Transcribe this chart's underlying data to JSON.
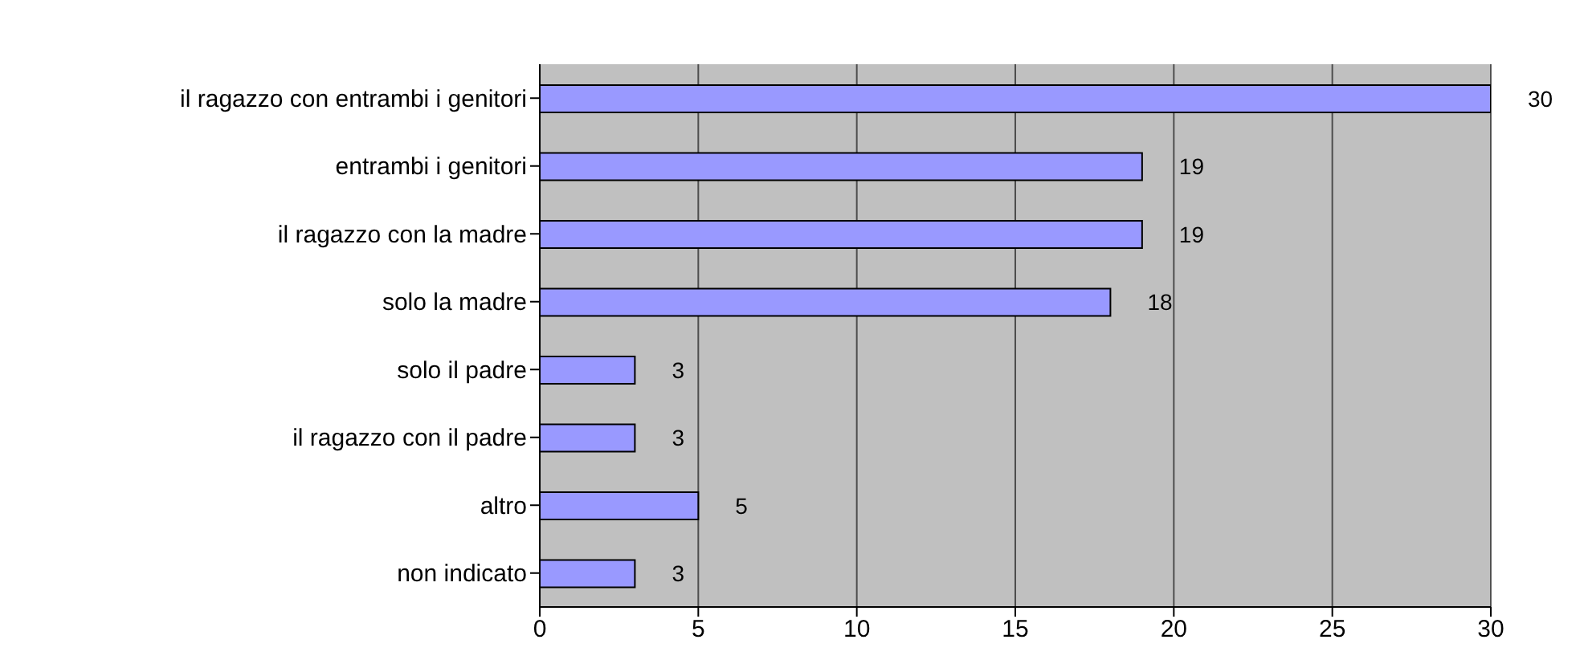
{
  "chart_data": {
    "type": "bar",
    "orientation": "horizontal",
    "categories": [
      "il ragazzo con entrambi i genitori",
      "entrambi i genitori",
      "il ragazzo con la madre",
      "solo la madre",
      "solo il padre",
      "il ragazzo con il padre",
      "altro",
      "non indicato"
    ],
    "values": [
      30,
      19,
      19,
      18,
      3,
      3,
      5,
      3
    ],
    "color": "#9999ff",
    "xlim": [
      0,
      30
    ],
    "xticks": [
      0,
      5,
      10,
      15,
      20,
      25,
      30
    ],
    "grid": "x",
    "data_labels": true
  }
}
